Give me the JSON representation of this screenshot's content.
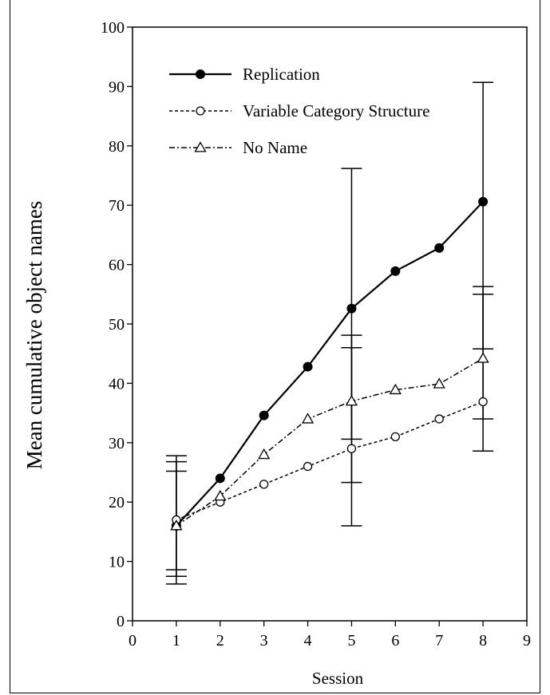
{
  "chart_data": {
    "type": "line",
    "title": "",
    "xlabel": "Session",
    "ylabel": "Mean cumulative object names",
    "xlim": [
      0,
      9
    ],
    "ylim": [
      0,
      100
    ],
    "xticks": [
      0,
      1,
      2,
      3,
      4,
      5,
      6,
      7,
      8,
      9
    ],
    "yticks": [
      0,
      10,
      20,
      30,
      40,
      50,
      60,
      70,
      80,
      90,
      100
    ],
    "grid": false,
    "legend_position": "top-left",
    "series": [
      {
        "name": "Replication",
        "marker": "filled-circle",
        "line_style": "solid",
        "x": [
          1,
          2,
          3,
          4,
          5,
          6,
          7,
          8
        ],
        "y": [
          16,
          24,
          34.6,
          42.8,
          52.6,
          58.9,
          62.8,
          70.6
        ]
      },
      {
        "name": "Variable Category Structure",
        "marker": "open-circle",
        "line_style": "dashed",
        "x": [
          1,
          2,
          3,
          4,
          5,
          6,
          7,
          8
        ],
        "y": [
          17,
          20,
          23,
          26,
          29,
          31,
          34,
          36.9
        ]
      },
      {
        "name": "No Name",
        "marker": "open-triangle",
        "line_style": "dash-dot",
        "x": [
          1,
          2,
          3,
          4,
          5,
          6,
          7,
          8
        ],
        "y": [
          16,
          21,
          28,
          34,
          37,
          38.9,
          39.9,
          44.2
        ]
      }
    ],
    "error_bars": [
      {
        "x": 1,
        "low": 6.2,
        "high": 27.8
      },
      {
        "x": 1,
        "low": 7.5,
        "high": 26.8
      },
      {
        "x": 1,
        "low": 8.6,
        "high": 25.2
      },
      {
        "x": 5,
        "low": 16.0,
        "high": 76.2
      },
      {
        "x": 5,
        "low": 23.3,
        "high": 48.1
      },
      {
        "x": 5,
        "low": 30.6,
        "high": 46.0
      },
      {
        "x": 8,
        "low": 28.6,
        "high": 90.7
      },
      {
        "x": 8,
        "low": 34.0,
        "high": 56.3
      },
      {
        "x": 8,
        "low": 45.8,
        "high": 55.0
      }
    ]
  }
}
